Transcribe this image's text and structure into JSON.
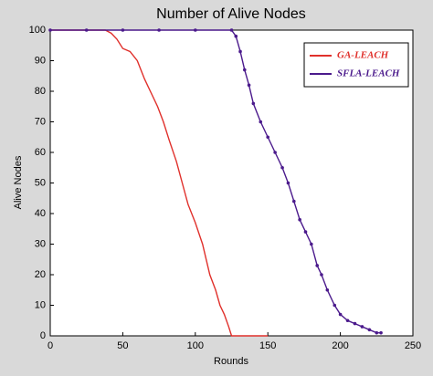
{
  "chart_data": {
    "type": "line",
    "title": "Number of Alive Nodes",
    "x_label": "Rounds",
    "y_label": "Alive Nodes",
    "xlim": [
      0,
      250
    ],
    "xticks": [
      0,
      50,
      100,
      150,
      200,
      250
    ],
    "ylim": [
      0,
      100
    ],
    "yticks": [
      0,
      10,
      20,
      30,
      40,
      50,
      60,
      70,
      80,
      90,
      100
    ],
    "legend": "upper right",
    "series": [
      {
        "name": "GA-LEACH",
        "color": "#e0302b",
        "marker": false,
        "x": [
          0,
          38,
          42,
          46,
          50,
          55,
          60,
          65,
          69,
          74,
          78,
          82,
          87,
          91,
          95,
          100,
          105,
          110,
          114,
          117,
          120,
          123,
          125,
          150
        ],
        "values": [
          100,
          100,
          99,
          97,
          94,
          93,
          90,
          84,
          80,
          75,
          70,
          64,
          57,
          50,
          43,
          37,
          30,
          20,
          15,
          10,
          7,
          3,
          0,
          0
        ]
      },
      {
        "name": "SFLA-LEACH",
        "color": "#4b1a8c",
        "marker": true,
        "x": [
          0,
          25,
          50,
          75,
          100,
          125,
          128,
          131,
          134,
          137,
          140,
          145,
          150,
          155,
          160,
          164,
          168,
          172,
          176,
          180,
          184,
          187,
          191,
          196,
          200,
          205,
          210,
          215,
          220,
          225,
          228
        ],
        "values": [
          100,
          100,
          100,
          100,
          100,
          100,
          98,
          93,
          87,
          82,
          76,
          70,
          65,
          60,
          55,
          50,
          44,
          38,
          34,
          30,
          23,
          20,
          15,
          10,
          7,
          5,
          4,
          3,
          2,
          1,
          1
        ]
      }
    ]
  }
}
